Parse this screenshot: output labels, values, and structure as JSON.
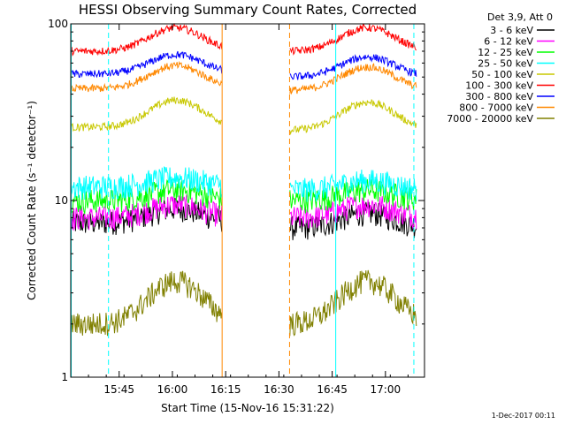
{
  "chart_data": {
    "type": "line",
    "title": "HESSI Observing Summary Count Rates, Corrected",
    "xlabel": "Start Time (15-Nov-16 15:31:22)",
    "ylabel": "Corrected Count Rate (s⁻¹ detector⁻¹)",
    "yscale": "log",
    "ylim": [
      1,
      100
    ],
    "xlim": [
      "15:31:22",
      "17:11:00"
    ],
    "x_ticks": [
      "15:45",
      "16:00",
      "16:15",
      "16:30",
      "16:45",
      "17:00"
    ],
    "y_ticks": [
      "1",
      "10",
      "100"
    ],
    "grid": false,
    "legend_position": "top-right outside",
    "legend_header": "Det 3,9, Att 0",
    "footer": "1-Dec-2017 00:11",
    "data_gaps": [
      [
        "16:14:00",
        "16:33:00"
      ]
    ],
    "vertical_markers": [
      {
        "time": "15:31:30",
        "color": "#00ffff",
        "style": "solid"
      },
      {
        "time": "15:42:00",
        "color": "#00ffff",
        "style": "dashed"
      },
      {
        "time": "16:14:00",
        "color": "#ff8800",
        "style": "solid"
      },
      {
        "time": "16:33:00",
        "color": "#ff8800",
        "style": "dashed"
      },
      {
        "time": "16:46:00",
        "color": "#00ffff",
        "style": "solid"
      },
      {
        "time": "17:08:00",
        "color": "#00ffff",
        "style": "dashed"
      }
    ],
    "series": [
      {
        "name": "3 - 6 keV",
        "color": "#000000",
        "start": 7.5,
        "bump": 1.5,
        "end": 7.0
      },
      {
        "name": "6 - 12 keV",
        "color": "#ff00ff",
        "start": 8.0,
        "bump": 1.5,
        "end": 8.0
      },
      {
        "name": "12 - 25 keV",
        "color": "#00ff00",
        "start": 10.0,
        "bump": 1.5,
        "end": 10.0
      },
      {
        "name": "25 - 50 keV",
        "color": "#00ffff",
        "start": 12.0,
        "bump": 1.5,
        "end": 11.5
      },
      {
        "name": "50 - 100 keV",
        "color": "#c8c800",
        "start": 26.0,
        "bump": 11.0,
        "end": 25.0
      },
      {
        "name": "100 - 300 keV",
        "color": "#ff0000",
        "start": 70.0,
        "bump": 25.0,
        "end": 70.0
      },
      {
        "name": "300 - 800 keV",
        "color": "#0000ff",
        "start": 52.0,
        "bump": 15.0,
        "end": 50.0
      },
      {
        "name": "800 - 7000 keV",
        "color": "#ff8800",
        "start": 43.0,
        "bump": 15.0,
        "end": 42.0
      },
      {
        "name": "7000 - 20000 keV",
        "color": "#808000",
        "start": 2.0,
        "bump": 1.5,
        "end": 2.0
      }
    ]
  }
}
